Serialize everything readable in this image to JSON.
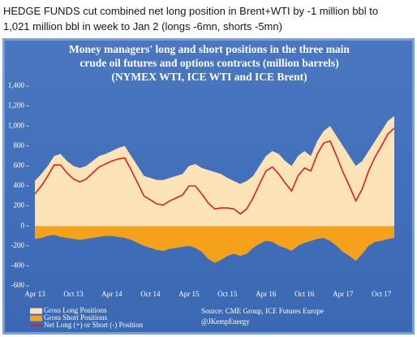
{
  "header": {
    "lines": [
      "HEDGE FUNDS cut combined net long position in Brent+WTI by -1 million bbl to",
      "1,021 million bbl in week to Jan 2 (longs -6mn, shorts -5mn)"
    ]
  },
  "chart_data": {
    "type": "area",
    "title": [
      "Money managers' long and short positions in the three main",
      "crude oil futures and options contracts (million barrels)",
      "(NYMEX WTI, ICE WTI and ICE Brent)"
    ],
    "source": [
      "Source:  CME Group, ICE Futures Europe",
      "@JKempEnergy"
    ],
    "categories": [
      "Apr 13",
      null,
      null,
      null,
      null,
      null,
      "Oct 13",
      null,
      null,
      null,
      null,
      null,
      "Apr 14",
      null,
      null,
      null,
      null,
      null,
      "Oct 14",
      null,
      null,
      null,
      null,
      null,
      "Apr 15",
      null,
      null,
      null,
      null,
      null,
      "Oct 15",
      null,
      null,
      null,
      null,
      null,
      "Apr 16",
      null,
      null,
      null,
      null,
      null,
      "Oct 16",
      null,
      null,
      null,
      null,
      null,
      "Apr 17",
      null,
      null,
      null,
      null,
      null,
      "Oct 17",
      null,
      null
    ],
    "series": [
      {
        "name": "Gross Long Positions",
        "color": "#fce3b8",
        "kind": "area",
        "values": [
          450,
          520,
          600,
          700,
          720,
          650,
          600,
          580,
          600,
          650,
          700,
          720,
          750,
          780,
          800,
          700,
          600,
          500,
          480,
          460,
          460,
          480,
          500,
          520,
          600,
          620,
          580,
          560,
          540,
          520,
          480,
          450,
          420,
          450,
          500,
          600,
          700,
          750,
          720,
          650,
          600,
          700,
          750,
          700,
          850,
          950,
          1000,
          900,
          800,
          700,
          600,
          650,
          750,
          850,
          950,
          1050,
          1100
        ]
      },
      {
        "name": "Gross Short Positions",
        "color": "#f5a11c",
        "kind": "area",
        "values": [
          -130,
          -120,
          -100,
          -90,
          -110,
          -120,
          -130,
          -140,
          -130,
          -120,
          -110,
          -100,
          -100,
          -110,
          -120,
          -140,
          -170,
          -200,
          -220,
          -240,
          -250,
          -230,
          -220,
          -210,
          -200,
          -220,
          -260,
          -330,
          -370,
          -340,
          -300,
          -280,
          -300,
          -280,
          -220,
          -180,
          -150,
          -160,
          -200,
          -220,
          -250,
          -200,
          -170,
          -150,
          -130,
          -120,
          -150,
          -200,
          -260,
          -300,
          -350,
          -280,
          -200,
          -160,
          -150,
          -130,
          -120
        ]
      },
      {
        "name": "Net Long (+) or Short (-) Position",
        "color": "#e0201b",
        "kind": "line",
        "values": [
          320,
          400,
          500,
          610,
          610,
          530,
          470,
          440,
          470,
          530,
          590,
          620,
          650,
          670,
          680,
          560,
          430,
          300,
          260,
          220,
          210,
          250,
          280,
          310,
          400,
          400,
          320,
          230,
          170,
          180,
          180,
          170,
          120,
          170,
          280,
          420,
          550,
          590,
          520,
          430,
          350,
          500,
          580,
          550,
          720,
          830,
          850,
          700,
          540,
          400,
          250,
          370,
          550,
          690,
          800,
          920,
          980
        ]
      }
    ],
    "ylim": [
      -600,
      1400
    ],
    "yticks": [
      -600,
      -400,
      -200,
      0,
      200,
      400,
      600,
      800,
      {
        "value": 1000,
        "label": "1,000"
      },
      {
        "value": 1200,
        "label": "1,200"
      },
      {
        "value": 1400,
        "label": "1,400"
      }
    ]
  }
}
